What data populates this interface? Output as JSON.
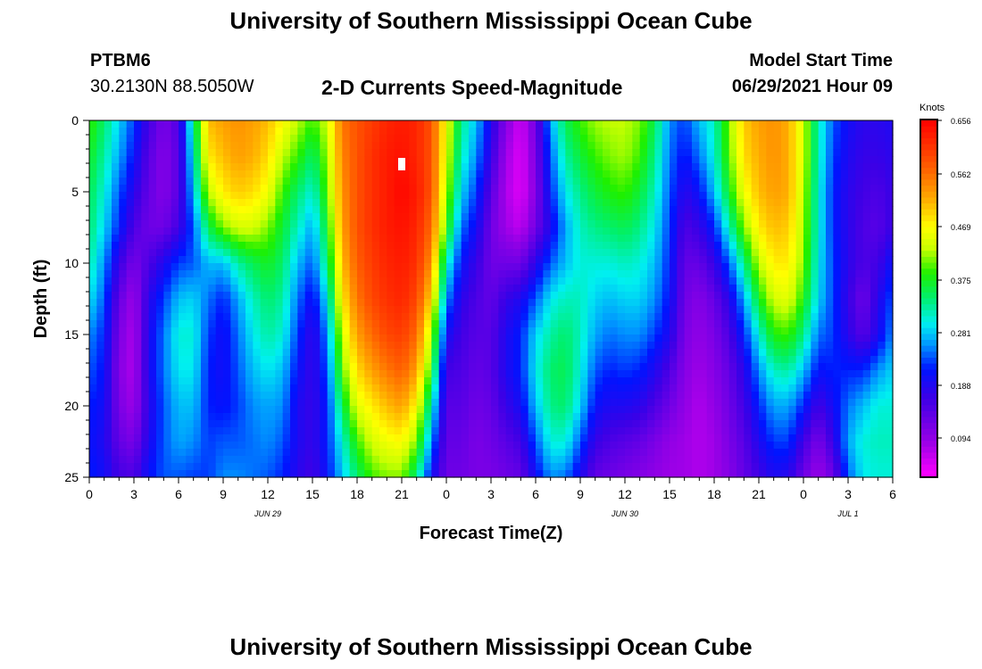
{
  "page": {
    "title_top": "University of Southern Mississippi Ocean Cube",
    "title_bottom": "University of Southern Mississippi Ocean Cube",
    "station_id": "PTBM6",
    "station_coords": "30.2130N  88.5050W",
    "subtitle": "2-D Currents Speed-Magnitude",
    "model_start_label": "Model Start Time",
    "model_start_value": "06/29/2021 Hour 09"
  },
  "colorbar": {
    "unit": "Knots",
    "ticks": [
      "0.656",
      "0.562",
      "0.469",
      "0.375",
      "0.281",
      "0.188",
      "0.094"
    ],
    "min": 0.0,
    "max": 0.656
  },
  "chart_data": {
    "type": "heatmap",
    "title": "2-D Currents Speed-Magnitude",
    "xlabel": "Forecast Time(Z)",
    "ylabel": "Depth (ft)",
    "x_tick_labels": [
      "0",
      "3",
      "6",
      "9",
      "12",
      "15",
      "18",
      "21",
      "0",
      "3",
      "6",
      "9",
      "12",
      "15",
      "18",
      "21",
      "0",
      "3",
      "6"
    ],
    "x_range_hours": [
      0,
      54
    ],
    "x_date_labels": [
      {
        "label": "JUN 29",
        "hour": 12
      },
      {
        "label": "JUN 30",
        "hour": 36
      },
      {
        "label": "JUL 1",
        "hour": 51
      }
    ],
    "y_tick_labels": [
      "0",
      "5",
      "10",
      "15",
      "20",
      "25"
    ],
    "y_range": [
      0,
      25
    ],
    "z_unit": "Knots",
    "z_range": [
      0.0,
      0.656
    ],
    "marker": {
      "hour": 21,
      "depth": 3
    },
    "control_hours": [
      0,
      1,
      2,
      3,
      4,
      5,
      6,
      7,
      8,
      9,
      10,
      11,
      12,
      13,
      14,
      15,
      16,
      17,
      18,
      19,
      20,
      21,
      22,
      23,
      24,
      25,
      26,
      27,
      28,
      29,
      30,
      31,
      32,
      33,
      34,
      35,
      36,
      37,
      38,
      39,
      40,
      41,
      42,
      43,
      44,
      45,
      46,
      47,
      48,
      49,
      50,
      51,
      52,
      53,
      54
    ],
    "control_depths": [
      0,
      2.5,
      5,
      7.5,
      10,
      12.5,
      15,
      17.5,
      20,
      22.5,
      25
    ],
    "speed_grid": [
      [
        0.38,
        0.36,
        0.34,
        0.33,
        0.31,
        0.28,
        0.24,
        0.22,
        0.2,
        0.19,
        0.2
      ],
      [
        0.33,
        0.31,
        0.29,
        0.27,
        0.24,
        0.22,
        0.2,
        0.19,
        0.18,
        0.17,
        0.18
      ],
      [
        0.27,
        0.25,
        0.22,
        0.2,
        0.15,
        0.11,
        0.09,
        0.08,
        0.09,
        0.11,
        0.14
      ],
      [
        0.21,
        0.19,
        0.16,
        0.13,
        0.09,
        0.06,
        0.05,
        0.05,
        0.06,
        0.09,
        0.13
      ],
      [
        0.14,
        0.12,
        0.11,
        0.1,
        0.13,
        0.16,
        0.17,
        0.17,
        0.16,
        0.17,
        0.19
      ],
      [
        0.09,
        0.08,
        0.08,
        0.1,
        0.17,
        0.21,
        0.23,
        0.23,
        0.22,
        0.22,
        0.22
      ],
      [
        0.13,
        0.12,
        0.12,
        0.14,
        0.21,
        0.26,
        0.29,
        0.28,
        0.26,
        0.25,
        0.22
      ],
      [
        0.32,
        0.29,
        0.26,
        0.22,
        0.22,
        0.27,
        0.29,
        0.28,
        0.26,
        0.24,
        0.21
      ],
      [
        0.5,
        0.47,
        0.42,
        0.34,
        0.26,
        0.23,
        0.21,
        0.2,
        0.2,
        0.21,
        0.21
      ],
      [
        0.52,
        0.5,
        0.47,
        0.4,
        0.26,
        0.2,
        0.18,
        0.18,
        0.19,
        0.22,
        0.24
      ],
      [
        0.53,
        0.52,
        0.49,
        0.43,
        0.31,
        0.25,
        0.23,
        0.22,
        0.21,
        0.22,
        0.24
      ],
      [
        0.52,
        0.51,
        0.48,
        0.43,
        0.34,
        0.3,
        0.28,
        0.26,
        0.24,
        0.23,
        0.23
      ],
      [
        0.5,
        0.48,
        0.45,
        0.4,
        0.36,
        0.33,
        0.31,
        0.28,
        0.25,
        0.24,
        0.22
      ],
      [
        0.46,
        0.42,
        0.38,
        0.35,
        0.33,
        0.31,
        0.29,
        0.26,
        0.24,
        0.22,
        0.2
      ],
      [
        0.42,
        0.38,
        0.33,
        0.3,
        0.26,
        0.23,
        0.21,
        0.19,
        0.17,
        0.17,
        0.16
      ],
      [
        0.38,
        0.33,
        0.29,
        0.25,
        0.22,
        0.18,
        0.15,
        0.15,
        0.15,
        0.15,
        0.14
      ],
      [
        0.43,
        0.41,
        0.39,
        0.36,
        0.33,
        0.28,
        0.24,
        0.22,
        0.2,
        0.2,
        0.19
      ],
      [
        0.55,
        0.54,
        0.53,
        0.52,
        0.5,
        0.47,
        0.43,
        0.39,
        0.34,
        0.29,
        0.26
      ],
      [
        0.58,
        0.58,
        0.58,
        0.58,
        0.57,
        0.55,
        0.52,
        0.48,
        0.44,
        0.38,
        0.33
      ],
      [
        0.6,
        0.61,
        0.61,
        0.61,
        0.6,
        0.59,
        0.56,
        0.52,
        0.47,
        0.43,
        0.38
      ],
      [
        0.62,
        0.63,
        0.63,
        0.63,
        0.62,
        0.61,
        0.59,
        0.55,
        0.5,
        0.45,
        0.4
      ],
      [
        0.63,
        0.64,
        0.65,
        0.64,
        0.63,
        0.62,
        0.6,
        0.57,
        0.52,
        0.46,
        0.4
      ],
      [
        0.62,
        0.62,
        0.63,
        0.62,
        0.61,
        0.59,
        0.56,
        0.52,
        0.46,
        0.4,
        0.32
      ],
      [
        0.58,
        0.58,
        0.58,
        0.56,
        0.53,
        0.48,
        0.42,
        0.37,
        0.3,
        0.24,
        0.18
      ],
      [
        0.45,
        0.44,
        0.42,
        0.38,
        0.3,
        0.24,
        0.18,
        0.14,
        0.12,
        0.11,
        0.1
      ],
      [
        0.32,
        0.3,
        0.27,
        0.23,
        0.19,
        0.16,
        0.14,
        0.13,
        0.12,
        0.11,
        0.1
      ],
      [
        0.26,
        0.24,
        0.21,
        0.18,
        0.15,
        0.13,
        0.12,
        0.11,
        0.1,
        0.09,
        0.09
      ],
      [
        0.17,
        0.15,
        0.12,
        0.1,
        0.1,
        0.11,
        0.12,
        0.12,
        0.11,
        0.1,
        0.09
      ],
      [
        0.08,
        0.06,
        0.05,
        0.06,
        0.1,
        0.15,
        0.17,
        0.17,
        0.15,
        0.12,
        0.1
      ],
      [
        0.03,
        0.02,
        0.02,
        0.04,
        0.1,
        0.17,
        0.2,
        0.2,
        0.18,
        0.14,
        0.11
      ],
      [
        0.1,
        0.09,
        0.08,
        0.1,
        0.16,
        0.22,
        0.27,
        0.28,
        0.26,
        0.22,
        0.18
      ],
      [
        0.25,
        0.22,
        0.2,
        0.17,
        0.22,
        0.28,
        0.31,
        0.33,
        0.32,
        0.29,
        0.24
      ],
      [
        0.34,
        0.31,
        0.28,
        0.25,
        0.26,
        0.3,
        0.33,
        0.34,
        0.33,
        0.29,
        0.23
      ],
      [
        0.38,
        0.35,
        0.32,
        0.3,
        0.29,
        0.3,
        0.3,
        0.29,
        0.27,
        0.22,
        0.17
      ],
      [
        0.41,
        0.38,
        0.35,
        0.32,
        0.29,
        0.27,
        0.25,
        0.22,
        0.19,
        0.15,
        0.11
      ],
      [
        0.42,
        0.4,
        0.37,
        0.33,
        0.29,
        0.26,
        0.23,
        0.2,
        0.17,
        0.13,
        0.1
      ],
      [
        0.42,
        0.41,
        0.38,
        0.34,
        0.3,
        0.27,
        0.24,
        0.21,
        0.17,
        0.12,
        0.09
      ],
      [
        0.4,
        0.38,
        0.35,
        0.32,
        0.29,
        0.27,
        0.24,
        0.2,
        0.16,
        0.11,
        0.08
      ],
      [
        0.34,
        0.32,
        0.3,
        0.28,
        0.26,
        0.24,
        0.21,
        0.17,
        0.13,
        0.09,
        0.07
      ],
      [
        0.24,
        0.23,
        0.22,
        0.21,
        0.2,
        0.19,
        0.17,
        0.13,
        0.1,
        0.07,
        0.06
      ],
      [
        0.21,
        0.19,
        0.16,
        0.13,
        0.11,
        0.1,
        0.09,
        0.08,
        0.07,
        0.06,
        0.06
      ],
      [
        0.26,
        0.23,
        0.19,
        0.15,
        0.11,
        0.08,
        0.07,
        0.06,
        0.05,
        0.05,
        0.05
      ],
      [
        0.3,
        0.29,
        0.26,
        0.2,
        0.15,
        0.11,
        0.09,
        0.08,
        0.07,
        0.06,
        0.06
      ],
      [
        0.4,
        0.39,
        0.36,
        0.3,
        0.22,
        0.16,
        0.13,
        0.11,
        0.1,
        0.09,
        0.08
      ],
      [
        0.49,
        0.48,
        0.45,
        0.4,
        0.32,
        0.25,
        0.2,
        0.16,
        0.14,
        0.12,
        0.11
      ],
      [
        0.52,
        0.51,
        0.5,
        0.47,
        0.42,
        0.36,
        0.29,
        0.24,
        0.2,
        0.17,
        0.14
      ],
      [
        0.53,
        0.53,
        0.52,
        0.5,
        0.47,
        0.43,
        0.37,
        0.3,
        0.25,
        0.21,
        0.17
      ],
      [
        0.51,
        0.51,
        0.51,
        0.49,
        0.47,
        0.44,
        0.38,
        0.31,
        0.25,
        0.21,
        0.16
      ],
      [
        0.43,
        0.43,
        0.42,
        0.41,
        0.4,
        0.37,
        0.32,
        0.26,
        0.2,
        0.14,
        0.1
      ],
      [
        0.3,
        0.3,
        0.29,
        0.29,
        0.28,
        0.27,
        0.23,
        0.19,
        0.14,
        0.09,
        0.06
      ],
      [
        0.22,
        0.21,
        0.2,
        0.2,
        0.21,
        0.21,
        0.21,
        0.2,
        0.18,
        0.15,
        0.1
      ],
      [
        0.18,
        0.17,
        0.16,
        0.16,
        0.16,
        0.15,
        0.16,
        0.2,
        0.23,
        0.25,
        0.22
      ],
      [
        0.16,
        0.15,
        0.14,
        0.13,
        0.13,
        0.1,
        0.12,
        0.2,
        0.26,
        0.29,
        0.28
      ],
      [
        0.16,
        0.15,
        0.13,
        0.12,
        0.14,
        0.16,
        0.17,
        0.24,
        0.29,
        0.3,
        0.29
      ],
      [
        0.17,
        0.16,
        0.15,
        0.15,
        0.19,
        0.22,
        0.24,
        0.27,
        0.29,
        0.3,
        0.29
      ]
    ]
  }
}
